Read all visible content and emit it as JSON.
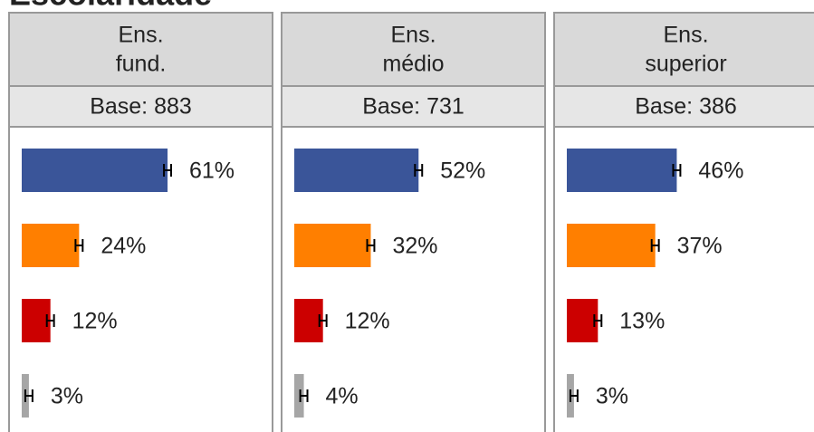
{
  "title": "Escolaridade",
  "chart_data": [
    {
      "type": "bar",
      "header": [
        "Ens.",
        "fund."
      ],
      "base": "Base: 883",
      "values": [
        61,
        24,
        12,
        3
      ],
      "value_labels": [
        "61%",
        "24%",
        "12%",
        "3%"
      ],
      "errors": [
        1.5,
        1.5,
        1.5,
        1.5
      ],
      "colors": [
        "#3a5599",
        "#ff7f00",
        "#cc0000",
        "#a6a6a6"
      ],
      "xlim": [
        0,
        100
      ]
    },
    {
      "type": "bar",
      "header": [
        "Ens.",
        "médio"
      ],
      "base": "Base: 731",
      "values": [
        52,
        32,
        12,
        4
      ],
      "value_labels": [
        "52%",
        "32%",
        "12%",
        "4%"
      ],
      "errors": [
        1.5,
        1.5,
        1.5,
        1.5
      ],
      "colors": [
        "#3a5599",
        "#ff7f00",
        "#cc0000",
        "#a6a6a6"
      ],
      "xlim": [
        0,
        100
      ]
    },
    {
      "type": "bar",
      "header": [
        "Ens.",
        "superior"
      ],
      "base": "Base: 386",
      "values": [
        46,
        37,
        13,
        3
      ],
      "value_labels": [
        "46%",
        "37%",
        "13%",
        "3%"
      ],
      "errors": [
        1.5,
        1.5,
        1.5,
        1.5
      ],
      "colors": [
        "#3a5599",
        "#ff7f00",
        "#cc0000",
        "#a6a6a6"
      ],
      "xlim": [
        0,
        100
      ]
    }
  ]
}
